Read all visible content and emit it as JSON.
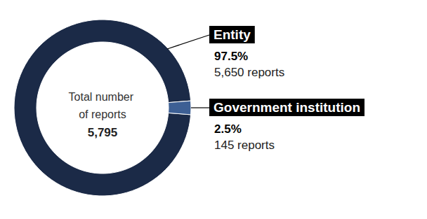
{
  "chart_data": {
    "type": "donut",
    "categories": [
      "Entity",
      "Government institution"
    ],
    "values": [
      5650,
      145
    ],
    "value_labels": [
      "5,650 reports",
      "145 reports"
    ],
    "percentages": [
      97.5,
      2.5
    ],
    "percentage_labels": [
      "97.5%",
      "2.5%"
    ],
    "colors": [
      "#1b2a47",
      "#3d5f94"
    ],
    "center_label": "Total number of reports",
    "total": {
      "value": 5795,
      "label": "5,795"
    }
  }
}
